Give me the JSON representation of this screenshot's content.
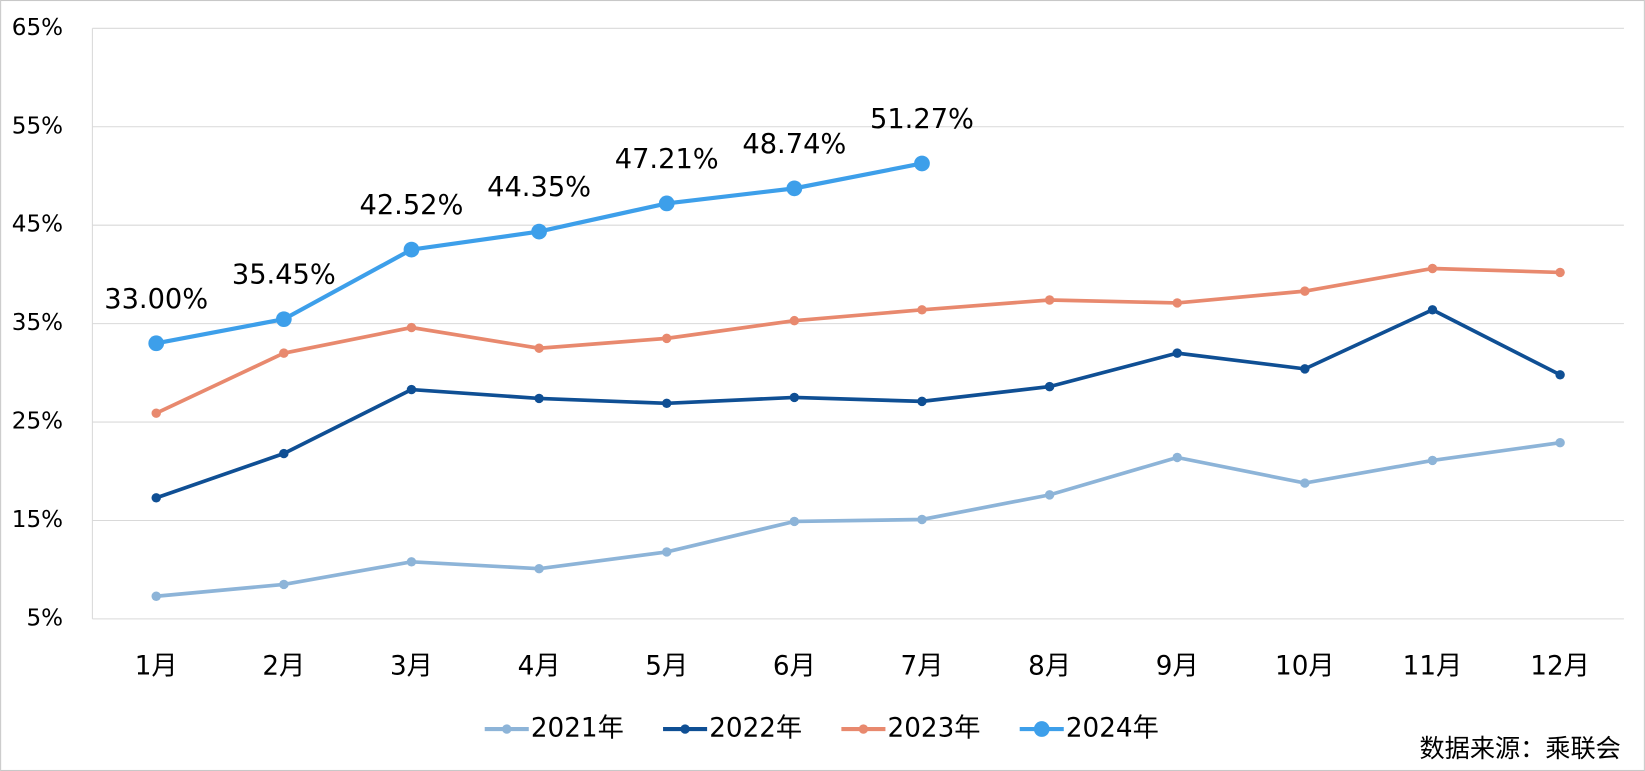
{
  "chart_data": {
    "type": "line",
    "categories": [
      "1月",
      "2月",
      "3月",
      "4月",
      "5月",
      "6月",
      "7月",
      "8月",
      "9月",
      "10月",
      "11月",
      "12月"
    ],
    "series": [
      {
        "name": "2021年",
        "color": "#8db4d8",
        "values": [
          7.3,
          8.5,
          10.8,
          10.1,
          11.8,
          14.9,
          15.1,
          17.6,
          21.4,
          18.8,
          21.1,
          22.9
        ]
      },
      {
        "name": "2022年",
        "color": "#0f4f94",
        "values": [
          17.3,
          21.8,
          28.3,
          27.4,
          26.9,
          27.5,
          27.1,
          28.6,
          32.0,
          30.4,
          36.4,
          29.8
        ]
      },
      {
        "name": "2023年",
        "color": "#e8896e",
        "values": [
          25.9,
          32.0,
          34.6,
          32.5,
          33.5,
          35.3,
          36.4,
          37.4,
          37.1,
          38.3,
          40.6,
          40.2
        ]
      },
      {
        "name": "2024年",
        "color": "#3d9fea",
        "values": [
          33.0,
          35.45,
          42.52,
          44.35,
          47.21,
          48.74,
          51.27,
          null,
          null,
          null,
          null,
          null
        ],
        "value_labels": [
          "33.00%",
          "35.45%",
          "42.52%",
          "44.35%",
          "47.21%",
          "48.74%",
          "51.27%",
          null,
          null,
          null,
          null,
          null
        ]
      }
    ],
    "ylim": [
      5,
      65
    ],
    "yticks": [
      {
        "value": 5,
        "label": "5%"
      },
      {
        "value": 15,
        "label": "15%"
      },
      {
        "value": 25,
        "label": "25%"
      },
      {
        "value": 35,
        "label": "35%"
      },
      {
        "value": 45,
        "label": "45%"
      },
      {
        "value": 55,
        "label": "55%"
      },
      {
        "value": 65,
        "label": "65%"
      }
    ],
    "grid": true,
    "legend": "bottom",
    "source": "数据来源：乘联会"
  }
}
